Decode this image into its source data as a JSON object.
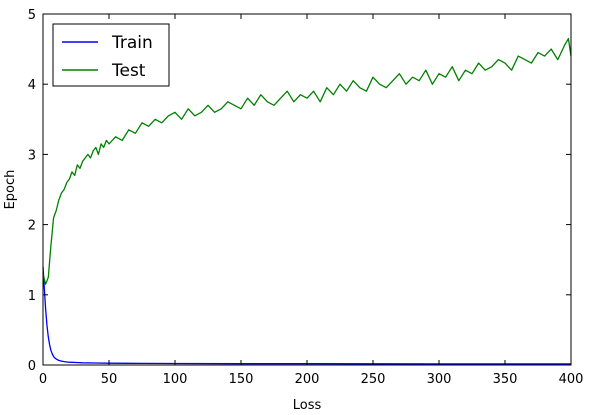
{
  "chart_data": {
    "type": "line",
    "title": "",
    "xlabel": "Loss",
    "ylabel": "Epoch",
    "xlim": [
      0,
      400
    ],
    "ylim": [
      0,
      5
    ],
    "xticks": [
      0,
      50,
      100,
      150,
      200,
      250,
      300,
      350,
      400
    ],
    "yticks": [
      0,
      1,
      2,
      3,
      4,
      5
    ],
    "grid": false,
    "legend_position": "top-left",
    "series": [
      {
        "name": "Train",
        "color": "#0000ff",
        "x": [
          0,
          1,
          2,
          3,
          4,
          5,
          6,
          7,
          8,
          9,
          10,
          12,
          14,
          16,
          18,
          20,
          25,
          30,
          40,
          50,
          75,
          100,
          150,
          200,
          250,
          300,
          350,
          400
        ],
        "y": [
          1.4,
          1.1,
          0.8,
          0.56,
          0.4,
          0.29,
          0.21,
          0.16,
          0.12,
          0.1,
          0.085,
          0.065,
          0.055,
          0.048,
          0.043,
          0.04,
          0.035,
          0.032,
          0.028,
          0.026,
          0.023,
          0.021,
          0.019,
          0.018,
          0.017,
          0.016,
          0.015,
          0.015
        ]
      },
      {
        "name": "Test",
        "color": "#008000",
        "x": [
          0,
          2,
          4,
          6,
          8,
          10,
          12,
          14,
          16,
          18,
          20,
          22,
          24,
          26,
          28,
          30,
          32,
          34,
          36,
          38,
          40,
          42,
          44,
          46,
          48,
          50,
          55,
          60,
          65,
          70,
          75,
          80,
          85,
          90,
          95,
          100,
          105,
          110,
          115,
          120,
          125,
          130,
          135,
          140,
          145,
          150,
          155,
          160,
          165,
          170,
          175,
          180,
          185,
          190,
          195,
          200,
          205,
          210,
          215,
          220,
          225,
          230,
          235,
          240,
          245,
          250,
          255,
          260,
          265,
          270,
          275,
          280,
          285,
          290,
          295,
          300,
          305,
          310,
          315,
          320,
          325,
          330,
          335,
          340,
          345,
          350,
          355,
          360,
          365,
          370,
          375,
          380,
          385,
          390,
          395,
          398,
          400
        ],
        "y": [
          1.3,
          1.15,
          1.25,
          1.7,
          2.1,
          2.2,
          2.35,
          2.45,
          2.5,
          2.6,
          2.65,
          2.75,
          2.7,
          2.85,
          2.8,
          2.9,
          2.95,
          3.0,
          2.95,
          3.05,
          3.1,
          3.0,
          3.15,
          3.1,
          3.2,
          3.15,
          3.25,
          3.2,
          3.35,
          3.3,
          3.45,
          3.4,
          3.5,
          3.45,
          3.55,
          3.6,
          3.5,
          3.65,
          3.55,
          3.6,
          3.7,
          3.6,
          3.65,
          3.75,
          3.7,
          3.65,
          3.8,
          3.7,
          3.85,
          3.75,
          3.7,
          3.8,
          3.9,
          3.75,
          3.85,
          3.8,
          3.9,
          3.75,
          3.95,
          3.85,
          4.0,
          3.9,
          4.05,
          3.95,
          3.9,
          4.1,
          4.0,
          3.95,
          4.05,
          4.15,
          4.0,
          4.1,
          4.05,
          4.2,
          4.0,
          4.15,
          4.1,
          4.25,
          4.05,
          4.2,
          4.15,
          4.3,
          4.2,
          4.25,
          4.35,
          4.3,
          4.2,
          4.4,
          4.35,
          4.3,
          4.45,
          4.4,
          4.5,
          4.35,
          4.55,
          4.65,
          4.4
        ]
      }
    ]
  }
}
